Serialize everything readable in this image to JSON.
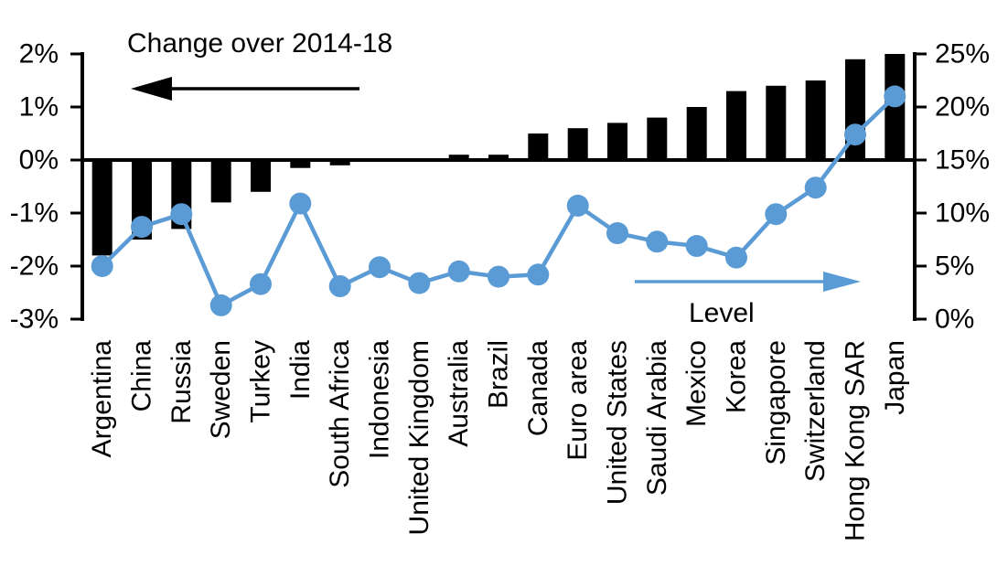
{
  "chart_data": {
    "type": "combo",
    "title": "Change over 2014-18",
    "level_label": "Level",
    "categories": [
      "Argentina",
      "China",
      "Russia",
      "Sweden",
      "Turkey",
      "India",
      "South Africa",
      "Indonesia",
      "United Kingdom",
      "Australia",
      "Brazil",
      "Canada",
      "Euro area",
      "United States",
      "Saudi Arabia",
      "Mexico",
      "Korea",
      "Singapore",
      "Switzerland",
      "Hong Kong SAR",
      "Japan"
    ],
    "series": [
      {
        "name": "Change over 2014-18",
        "chart_type": "bar",
        "axis": "left",
        "color": "#000000",
        "values": [
          -1.8,
          -1.5,
          -1.3,
          -0.8,
          -0.6,
          -0.15,
          -0.1,
          0,
          0,
          0.1,
          0.1,
          0.5,
          0.6,
          0.7,
          0.8,
          1.0,
          1.3,
          1.4,
          1.5,
          1.9,
          2.0
        ]
      },
      {
        "name": "Level",
        "chart_type": "line",
        "axis": "right",
        "color": "#5b9bd5",
        "values": [
          5.0,
          8.7,
          9.9,
          1.3,
          3.3,
          10.9,
          3.1,
          4.9,
          3.4,
          4.5,
          4.0,
          4.2,
          10.7,
          8.1,
          7.3,
          6.9,
          5.8,
          9.9,
          12.4,
          17.4,
          21.0
        ]
      }
    ],
    "left_axis": {
      "tick_labels": [
        "2%",
        "1%",
        "0%",
        "-1%",
        "-2%",
        "-3%"
      ],
      "tick_values": [
        2,
        1,
        0,
        -1,
        -2,
        -3
      ],
      "range": [
        -3,
        2
      ]
    },
    "right_axis": {
      "tick_labels": [
        "25%",
        "20%",
        "15%",
        "10%",
        "5%",
        "0%"
      ],
      "tick_values": [
        25,
        20,
        15,
        10,
        5,
        0
      ],
      "range": [
        0,
        25
      ]
    },
    "grid": false,
    "legend_position": "annotations-with-arrows",
    "background": "#ffffff"
  }
}
